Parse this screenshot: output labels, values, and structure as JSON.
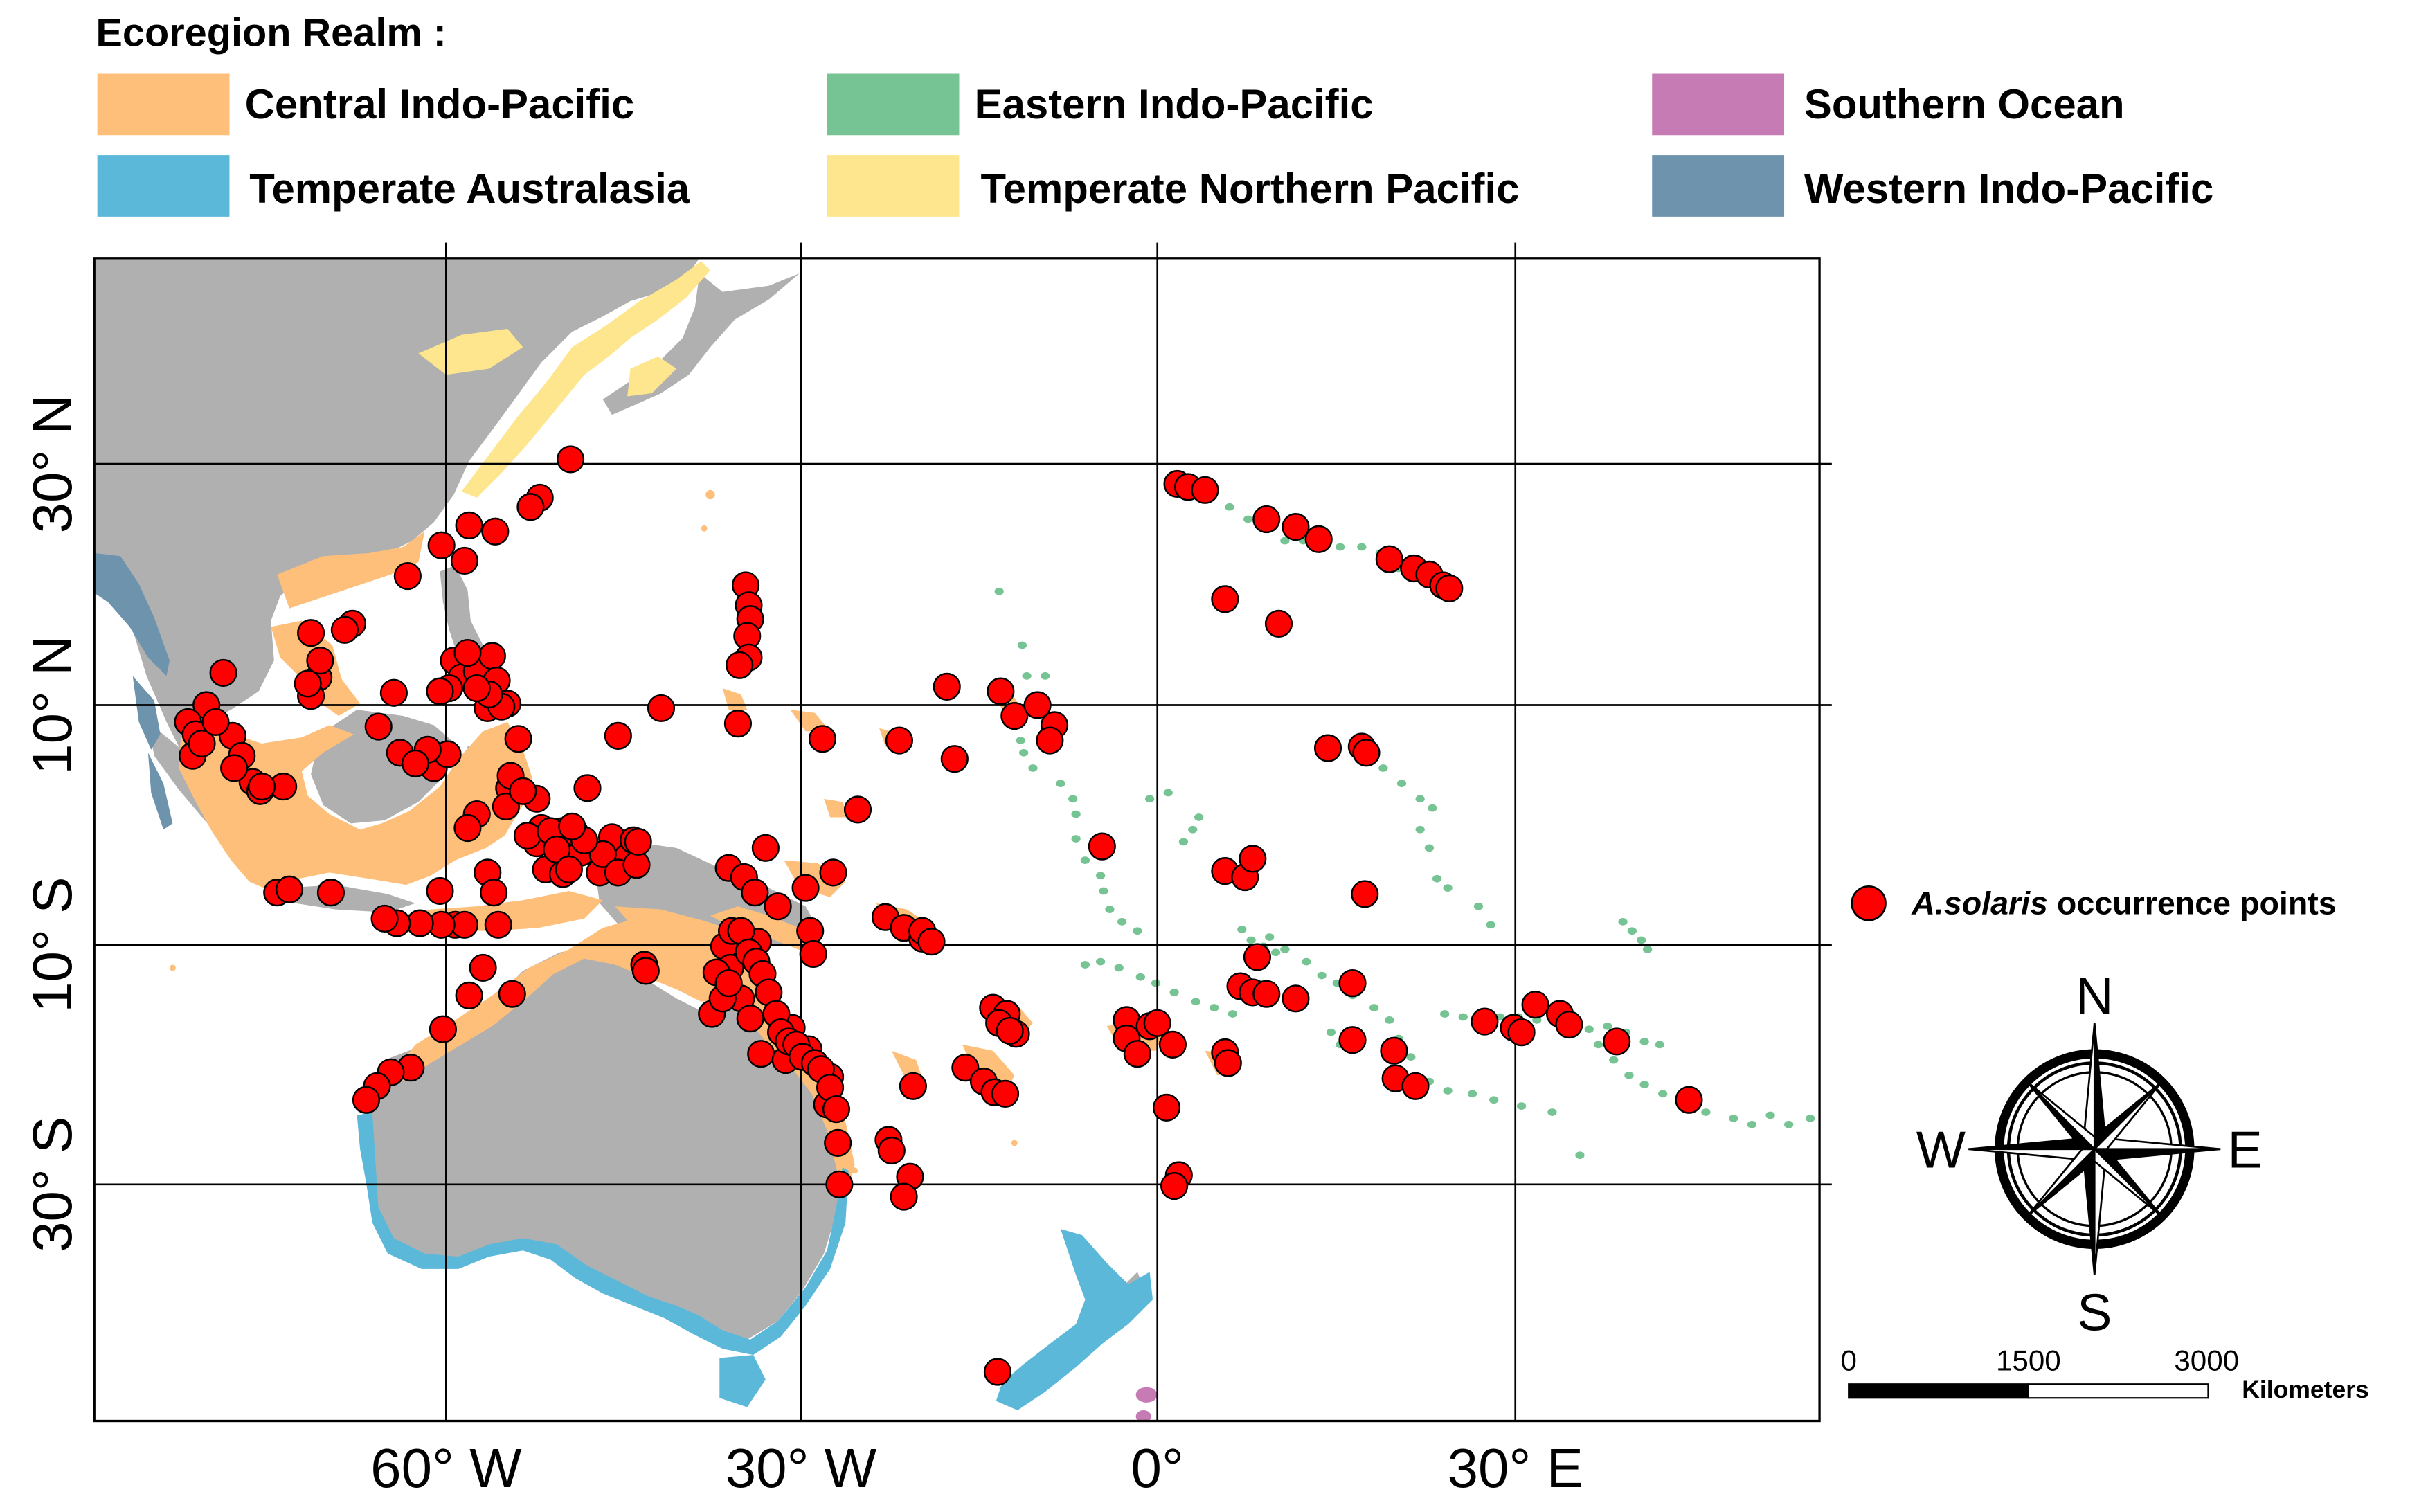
{
  "legend": {
    "title": "Ecoregion Realm :",
    "realms": [
      {
        "label": "Central Indo-Pacific",
        "color": "#fdbf7a"
      },
      {
        "label": "Eastern Indo-Pacific",
        "color": "#76c393"
      },
      {
        "label": "Southern Ocean",
        "color": "#c77bb5"
      },
      {
        "label": "Temperate Australasia",
        "color": "#5bb8d9"
      },
      {
        "label": "Temperate Northern Pacific",
        "color": "#fde68d"
      },
      {
        "label": "Western Indo-Pacific",
        "color": "#6d93ad"
      }
    ]
  },
  "map": {
    "land_color": "#b0b0b0",
    "point_color": "#ff0000",
    "graticule_lat_labels": [
      "30° N",
      "10° N",
      "10° S",
      "30° S"
    ],
    "graticule_lon_labels": [
      "60° W",
      "30° W",
      "0°",
      "30° E"
    ]
  },
  "points_legend": {
    "species": "A.solaris",
    "suffix": " occurrence points"
  },
  "compass": {
    "n": "N",
    "s": "S",
    "e": "E",
    "w": "W"
  },
  "scale_bar": {
    "ticks": [
      "0",
      "1500",
      "3000"
    ],
    "unit": "Kilometers"
  }
}
